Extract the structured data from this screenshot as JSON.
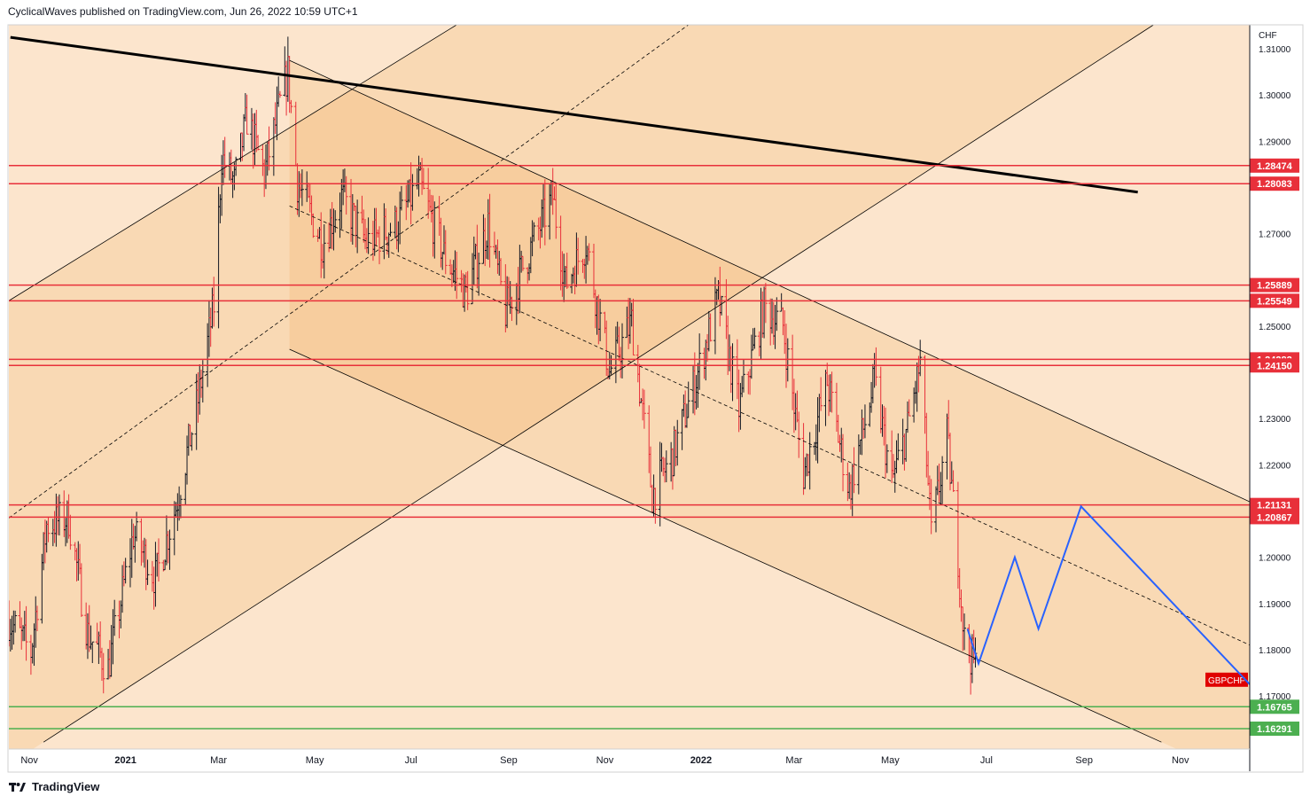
{
  "header": {
    "published_by": "CyclicalWaves published on TradingView.com, Jun 26, 2022 10:59 UTC+1"
  },
  "footer": {
    "brand": "TradingView",
    "logo_icon": "tradingview-logo-icon"
  },
  "colors": {
    "background_light": "#fce5cd",
    "band_mid": "#f9d9b4",
    "band_dark": "#f7cd9e",
    "level_red": "#e8303a",
    "level_green": "#4caf50",
    "projection_blue": "#2962ff",
    "candle_up": "#131722",
    "candle_down": "#e8303a",
    "trendline_black": "#000000"
  },
  "chart_data": {
    "type": "ohlc-bar",
    "symbol": "GBPCHF",
    "currency": "CHF",
    "ylim": [
      1.1585,
      1.3152
    ],
    "xlim": [
      "2020-10-19",
      "2022-12-15"
    ],
    "x_ticks": [
      {
        "date": "2020-11-01",
        "label": "Nov",
        "bold": false
      },
      {
        "date": "2021-01-01",
        "label": "2021",
        "bold": true
      },
      {
        "date": "2021-03-01",
        "label": "Mar",
        "bold": false
      },
      {
        "date": "2021-05-01",
        "label": "May",
        "bold": false
      },
      {
        "date": "2021-07-01",
        "label": "Jul",
        "bold": false
      },
      {
        "date": "2021-09-01",
        "label": "Sep",
        "bold": false
      },
      {
        "date": "2021-11-01",
        "label": "Nov",
        "bold": false
      },
      {
        "date": "2022-01-01",
        "label": "2022",
        "bold": true
      },
      {
        "date": "2022-03-01",
        "label": "Mar",
        "bold": false
      },
      {
        "date": "2022-05-01",
        "label": "May",
        "bold": false
      },
      {
        "date": "2022-07-01",
        "label": "Jul",
        "bold": false
      },
      {
        "date": "2022-09-01",
        "label": "Sep",
        "bold": false
      },
      {
        "date": "2022-11-01",
        "label": "Nov",
        "bold": false
      }
    ],
    "y_ticks": [
      "1.31000",
      "1.30000",
      "1.29000",
      "1.27000",
      "1.25000",
      "1.23000",
      "1.22000",
      "1.20000",
      "1.19000",
      "1.18000",
      "1.17000"
    ],
    "price_anchors": [
      [
        "2020-10-19",
        1.1865
      ],
      [
        "2020-11-02",
        1.1795
      ],
      [
        "2020-11-12",
        1.207
      ],
      [
        "2020-11-26",
        1.2085
      ],
      [
        "2020-12-08",
        1.1835
      ],
      [
        "2020-12-21",
        1.176
      ],
      [
        "2021-01-06",
        1.205
      ],
      [
        "2021-01-20",
        1.1955
      ],
      [
        "2021-02-02",
        1.211
      ],
      [
        "2021-02-16",
        1.234
      ],
      [
        "2021-02-26",
        1.2545
      ],
      [
        "2021-03-03",
        1.2865
      ],
      [
        "2021-03-11",
        1.281
      ],
      [
        "2021-03-19",
        1.295
      ],
      [
        "2021-03-30",
        1.283
      ],
      [
        "2021-04-09",
        1.298
      ],
      [
        "2021-04-14",
        1.305
      ],
      [
        "2021-04-20",
        1.281
      ],
      [
        "2021-05-06",
        1.268
      ],
      [
        "2021-05-18",
        1.278
      ],
      [
        "2021-06-03",
        1.268
      ],
      [
        "2021-06-22",
        1.272
      ],
      [
        "2021-07-06",
        1.281
      ],
      [
        "2021-07-22",
        1.2655
      ],
      [
        "2021-08-05",
        1.257
      ],
      [
        "2021-08-19",
        1.272
      ],
      [
        "2021-08-30",
        1.253
      ],
      [
        "2021-09-09",
        1.262
      ],
      [
        "2021-09-29",
        1.278
      ],
      [
        "2021-10-07",
        1.259
      ],
      [
        "2021-10-20",
        1.268
      ],
      [
        "2021-11-04",
        1.24
      ],
      [
        "2021-11-18",
        1.251
      ],
      [
        "2021-12-01",
        1.2135
      ],
      [
        "2021-12-14",
        1.222
      ],
      [
        "2021-12-30",
        1.24
      ],
      [
        "2022-01-12",
        1.256
      ],
      [
        "2022-01-25",
        1.232
      ],
      [
        "2022-02-10",
        1.254
      ],
      [
        "2022-02-22",
        1.25
      ],
      [
        "2022-03-07",
        1.218
      ],
      [
        "2022-03-22",
        1.238
      ],
      [
        "2022-04-05",
        1.2145
      ],
      [
        "2022-04-21",
        1.238
      ],
      [
        "2022-05-02",
        1.216
      ],
      [
        "2022-05-12",
        1.228
      ],
      [
        "2022-05-20",
        1.242
      ],
      [
        "2022-05-27",
        1.205
      ],
      [
        "2022-06-06",
        1.226
      ],
      [
        "2022-06-13",
        1.2
      ],
      [
        "2022-06-17",
        1.182
      ],
      [
        "2022-06-24",
        1.1765
      ]
    ],
    "levels": [
      {
        "value": 1.28474,
        "label": "1.28474",
        "color": "red"
      },
      {
        "value": 1.28083,
        "label": "1.28083",
        "color": "red"
      },
      {
        "value": 1.25889,
        "label": "1.25889",
        "color": "red"
      },
      {
        "value": 1.25549,
        "label": "1.25549",
        "color": "red"
      },
      {
        "value": 1.24282,
        "label": "1.24282",
        "color": "red"
      },
      {
        "value": 1.2415,
        "label": "1.24150",
        "color": "red"
      },
      {
        "value": 1.21131,
        "label": "1.21131",
        "color": "red"
      },
      {
        "value": 1.20867,
        "label": "1.20867",
        "color": "red"
      },
      {
        "value": 1.16765,
        "label": "1.16765",
        "color": "green"
      },
      {
        "value": 1.16291,
        "label": "1.16291",
        "color": "green"
      }
    ],
    "symbol_tag": {
      "label": "GBPCHF",
      "value": 1.1735
    },
    "trendlines": [
      {
        "name": "major-resistance",
        "from": [
          "2020-10-20",
          1.3125
        ],
        "to": [
          "2022-10-05",
          1.279
        ]
      },
      {
        "name": "descending-channel-top",
        "from": [
          "2021-04-15",
          1.3075
        ],
        "to": [
          "2022-12-15",
          1.212
        ]
      },
      {
        "name": "descending-channel-mid",
        "from": [
          "2021-04-15",
          1.276
        ],
        "to": [
          "2022-12-15",
          1.181
        ]
      },
      {
        "name": "descending-channel-bottom",
        "from": [
          "2021-04-15",
          1.245
        ],
        "to": [
          "2022-10-20",
          1.16
        ]
      },
      {
        "name": "ascending-channel-top",
        "from": [
          "2020-10-19",
          1.2555
        ],
        "to": [
          "2021-07-30",
          1.3152
        ]
      },
      {
        "name": "ascending-channel-mid",
        "from": [
          "2020-10-19",
          1.2085
        ],
        "to": [
          "2021-12-24",
          1.3152
        ]
      },
      {
        "name": "ascending-channel-bottom",
        "from": [
          "2020-11-10",
          1.16
        ],
        "to": [
          "2022-10-15",
          1.3152
        ]
      }
    ],
    "projection_path": [
      [
        "2022-06-19",
        1.1845
      ],
      [
        "2022-06-26",
        1.177
      ],
      [
        "2022-07-19",
        1.2
      ],
      [
        "2022-08-03",
        1.1845
      ],
      [
        "2022-08-30",
        1.211
      ],
      [
        "2022-12-15",
        1.1725
      ]
    ]
  }
}
